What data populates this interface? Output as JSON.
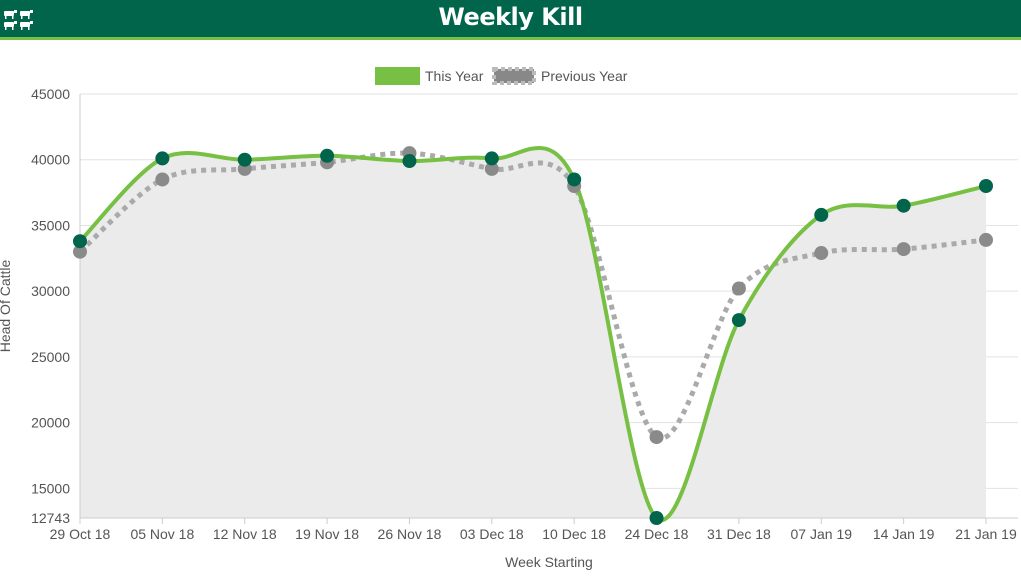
{
  "header": {
    "title": "Weekly Kill",
    "icon": "cattle-icon"
  },
  "colors": {
    "header_bg": "#00654a",
    "header_rule": "#77c043",
    "this_year_line": "#77c043",
    "this_year_marker": "#00654a",
    "previous_year": "#999999",
    "area_fill": "#ebebeb"
  },
  "chart_data": {
    "type": "line",
    "title": "",
    "xlabel": "Week Starting",
    "ylabel": "Head Of Cattle",
    "categories": [
      "29 Oct 18",
      "05 Nov 18",
      "12 Nov 18",
      "19 Nov 18",
      "26 Nov 18",
      "03 Dec 18",
      "10 Dec 18",
      "24 Dec 18",
      "31 Dec 18",
      "07 Jan 19",
      "14 Jan 19",
      "21 Jan 19"
    ],
    "series": [
      {
        "name": "This Year",
        "style": "solid",
        "values": [
          33800,
          40100,
          40000,
          40300,
          39900,
          40100,
          38500,
          12743,
          27800,
          35800,
          36500,
          38000
        ]
      },
      {
        "name": "Previous Year",
        "style": "dotted",
        "values": [
          33000,
          38500,
          39300,
          39800,
          40500,
          39300,
          38000,
          18900,
          30200,
          32900,
          33200,
          33900
        ]
      }
    ],
    "ylim": [
      12743,
      45000
    ],
    "yticks": [
      12743,
      15000,
      20000,
      25000,
      30000,
      35000,
      40000,
      45000
    ],
    "grid": true,
    "legend_position": "top-center",
    "area_under": "This Year"
  }
}
